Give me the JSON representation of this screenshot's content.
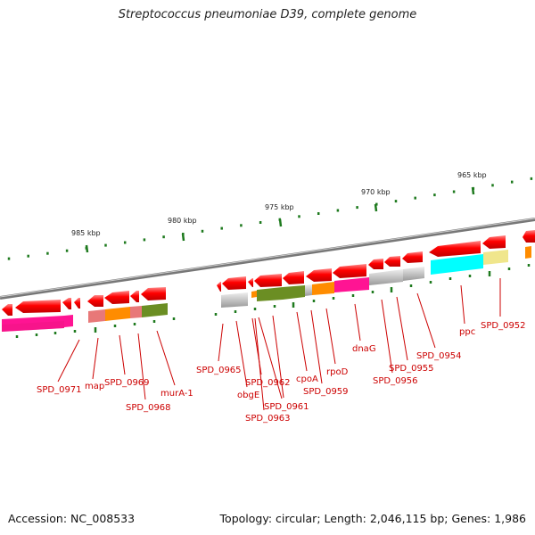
{
  "title": "Streptococcus pneumoniae D39, complete genome",
  "footer": {
    "accession_label": "Accession:",
    "accession": "NC_008533",
    "topology_label": "Topology:",
    "topology": "circular",
    "length_label": "Length:",
    "length": "2,046,115 bp",
    "genes_label": "Genes:",
    "genes": "1,986"
  },
  "ruler": [
    {
      "label": "985 kbp"
    },
    {
      "label": "980 kbp"
    },
    {
      "label": "975 kbp"
    },
    {
      "label": "970 kbp"
    },
    {
      "label": "965 kbp"
    }
  ],
  "genes": [
    "SPD_0971",
    "map",
    "SPD_0969",
    "SPD_0968",
    "murA-1",
    "SPD_0965",
    "obgE",
    "SPD_0962",
    "SPD_0963",
    "SPD_0961",
    "cpoA",
    "SPD_0959",
    "rpoD",
    "dnaG",
    "SPD_0956",
    "SPD_0955",
    "SPD_0954",
    "ppc",
    "SPD_0952"
  ],
  "colors": {
    "gene_arrow": "#ff0000",
    "label": "#cc0000",
    "backbone": "#888888",
    "tick": "#1e7a1e"
  }
}
